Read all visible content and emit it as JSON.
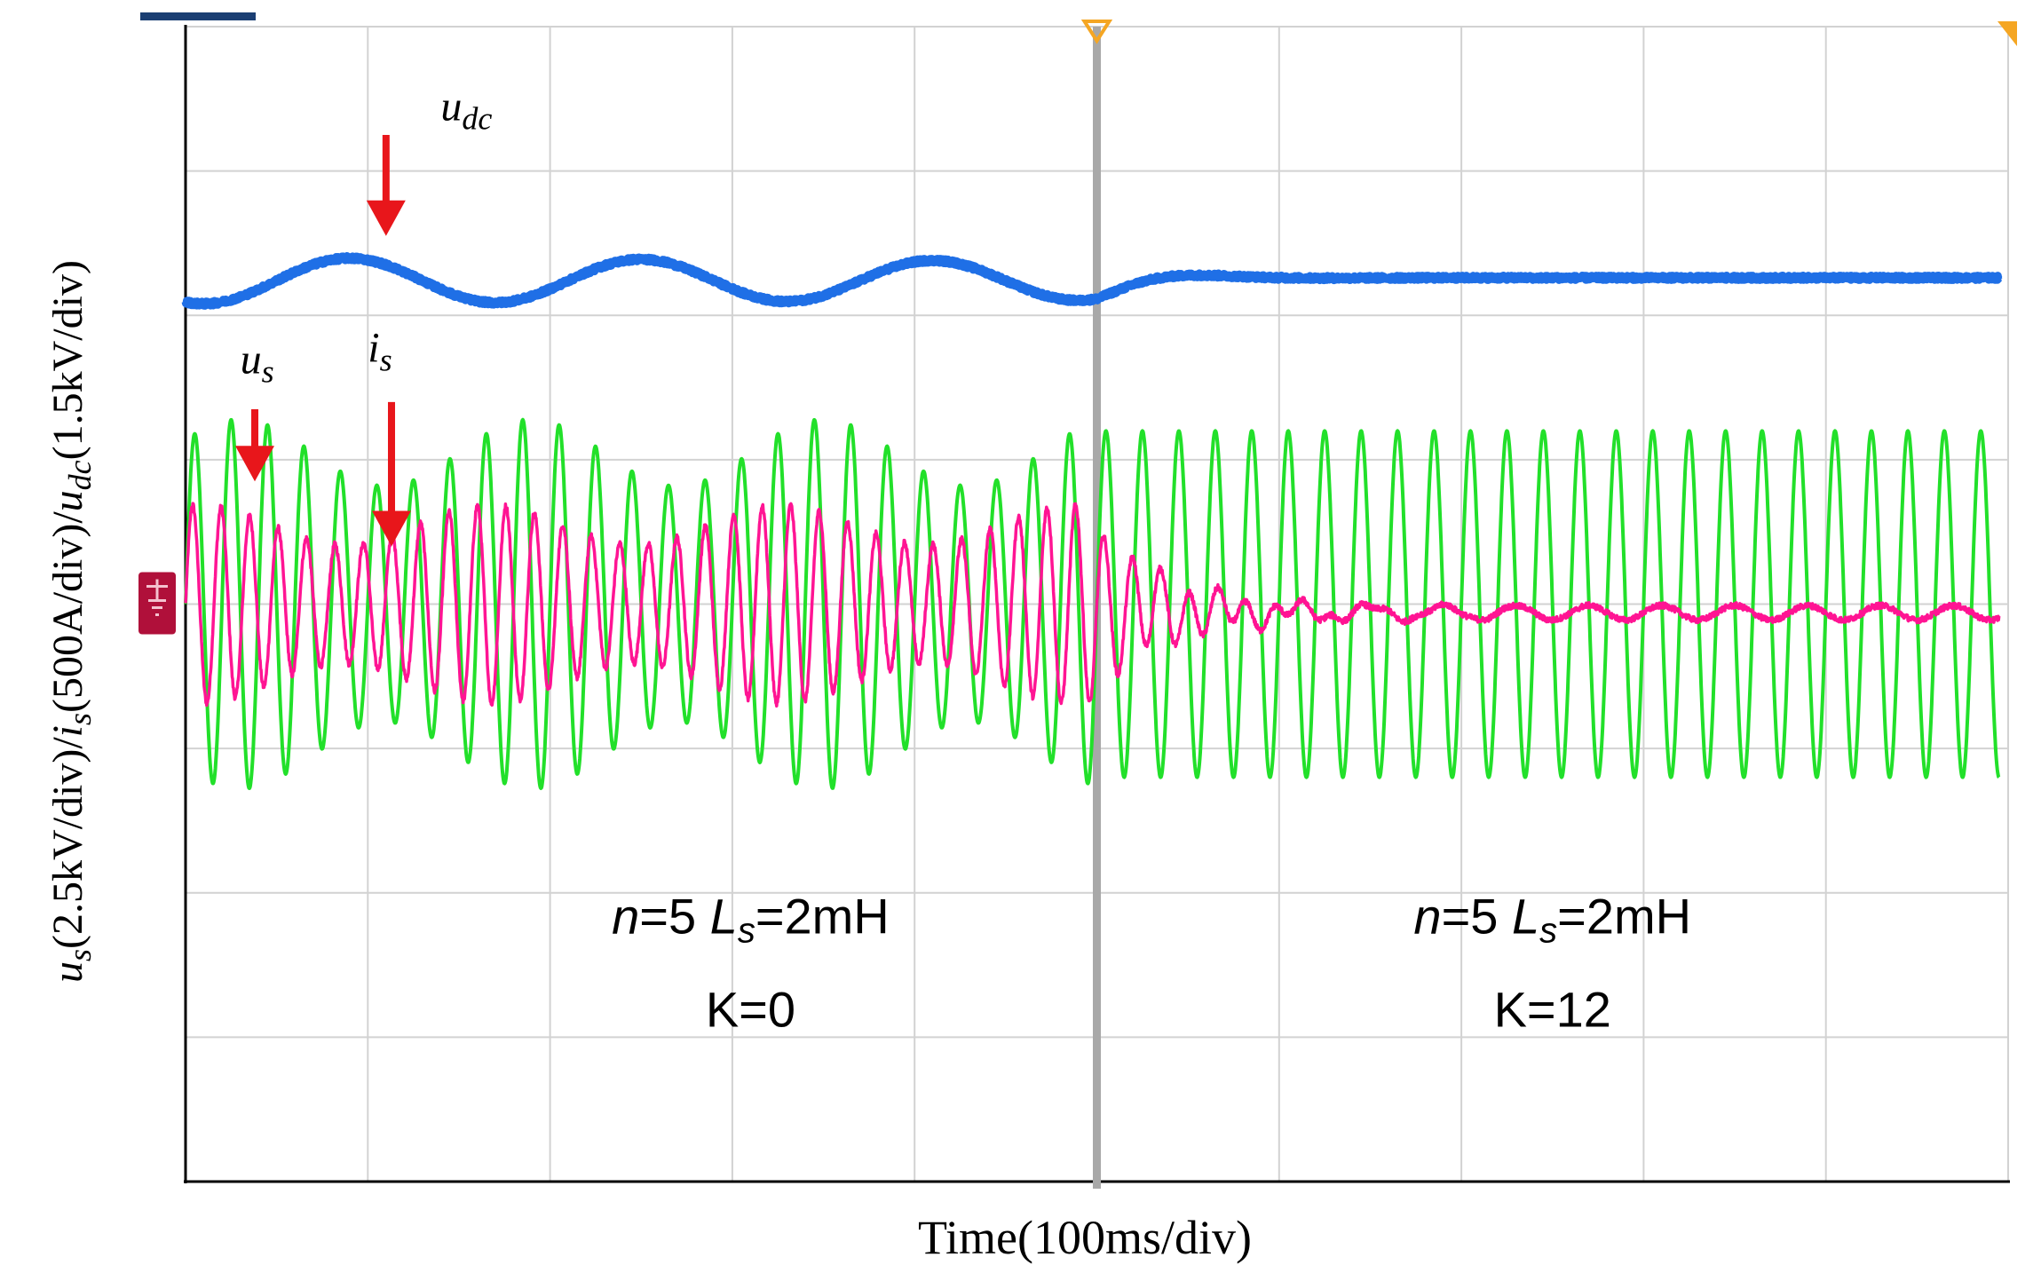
{
  "chart_data": {
    "type": "line",
    "title": "",
    "xlabel": "Time(100ms/div)",
    "ylabel": {
      "parts": [
        {
          "text": "u",
          "italic": true
        },
        {
          "text": "s",
          "italic": true,
          "sub": true
        },
        {
          "text": "(2.5kV/div)/",
          "italic": false
        },
        {
          "text": "i",
          "italic": true
        },
        {
          "text": "s",
          "italic": true,
          "sub": true
        },
        {
          "text": "(500A/div)/",
          "italic": false
        },
        {
          "text": "u",
          "italic": true
        },
        {
          "text": "dc",
          "italic": true,
          "sub": true
        },
        {
          "text": "(1.5kV/div)",
          "italic": false
        }
      ]
    },
    "x_divisions": 10,
    "y_divisions": 8,
    "grid": true,
    "xlim_div": [
      0,
      10
    ],
    "ylim_div": [
      0,
      8
    ],
    "event_time_div": 5.0,
    "series": [
      {
        "name": "u_dc",
        "color": "#1f6fe6",
        "scale": "1.5kV/div",
        "description": "DC-link voltage: low-frequency oscillation before K switch, flat after",
        "offset_div": 6.24,
        "pre_event": {
          "amplitude_div": 0.16,
          "period_div": 1.6,
          "phase_div": 0.5
        },
        "post_event": {
          "decay_to_div": 6.26,
          "settle_div": 0.9
        },
        "noise_div": 0.03
      },
      {
        "name": "u_s",
        "color": "#22e02a",
        "scale": "2.5kV/div",
        "description": "Source voltage, ~50 Hz, amplitude modulated before event, constant after",
        "offset_div": 4.0,
        "cycles_per_div": 5.0,
        "pre_event": {
          "amplitude_div": 1.05,
          "mod_depth": 0.22,
          "mod_period_div": 1.6
        },
        "post_event": {
          "amplitude_div": 1.2
        }
      },
      {
        "name": "i_s",
        "color": "#ff1493",
        "scale": "500A/div",
        "description": "Source current with harmonic oscillation before event, decays to small ripple after",
        "offset_div": 4.0,
        "cycles_per_div": 6.4,
        "pre_event": {
          "amplitude_div": 0.55,
          "mod_depth": 0.25,
          "mod_period_div": 1.6
        },
        "post_event": {
          "decay_tau_div": 0.45,
          "residual_amplitude_div": 0.05,
          "residual_offset_div": -0.06
        },
        "noise_div": 0.04
      }
    ],
    "annotations": [
      {
        "id": "udc",
        "label_main": "u",
        "label_sub": "dc",
        "label_pos_div": [
          1.4,
          7.35
        ],
        "arrow_from_div": [
          1.1,
          7.25
        ],
        "arrow_to_div": [
          1.1,
          6.55
        ]
      },
      {
        "id": "us",
        "label_main": "u",
        "label_sub": "s",
        "label_pos_div": [
          0.3,
          5.6
        ],
        "arrow_from_div": [
          0.38,
          5.35
        ],
        "arrow_to_div": [
          0.38,
          4.85
        ]
      },
      {
        "id": "is",
        "label_main": "i",
        "label_sub": "s",
        "label_pos_div": [
          1.0,
          5.68
        ],
        "arrow_from_div": [
          1.13,
          5.4
        ],
        "arrow_to_div": [
          1.13,
          4.4
        ]
      }
    ],
    "text_blocks": [
      {
        "id": "left",
        "center_div": [
          3.1,
          1.78
        ],
        "line1": {
          "n": "n",
          "n_val": "=5 ",
          "L": "L",
          "L_sub": "s",
          "L_val": "=2mH"
        },
        "line2": "K=0"
      },
      {
        "id": "right",
        "center_div": [
          7.5,
          1.78
        ],
        "line1": {
          "n": "n",
          "n_val": "=5 ",
          "L": "L",
          "L_sub": "s",
          "L_val": "=2mH"
        },
        "line2": "K=12"
      }
    ],
    "colors": {
      "grid": "#d2d2d2",
      "frame": "#000000",
      "cursor": "#a8a8a8",
      "arrow": "#e8161b",
      "ground_marker": "#b0103a",
      "top_tab": "#1b3f73",
      "trigger_marker": "#f5a623"
    }
  }
}
